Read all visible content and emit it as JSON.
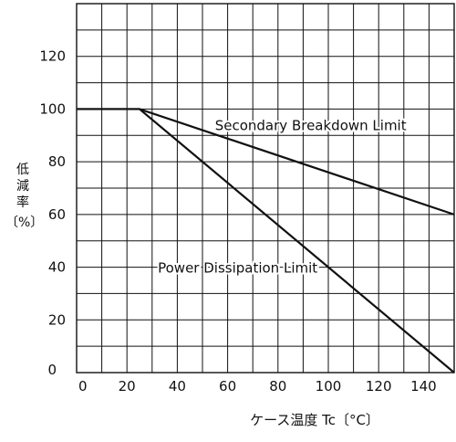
{
  "chart_data": {
    "type": "line",
    "xlabel": "ケース温度 Tc〔°C〕",
    "ylabel_chars": [
      "低",
      "減",
      "率"
    ],
    "ylabel_unit": "〔%〕",
    "xlim": [
      0,
      150
    ],
    "ylim": [
      0,
      140
    ],
    "x_ticks": [
      0,
      20,
      40,
      60,
      80,
      100,
      120,
      140
    ],
    "y_ticks": [
      0,
      20,
      40,
      60,
      80,
      100,
      120
    ],
    "x_minor_step": 10,
    "y_minor_step": 10,
    "grid": true,
    "series": [
      {
        "name": "Secondary Breakdown Limit",
        "x": [
          0,
          25,
          150
        ],
        "y": [
          100,
          100,
          60
        ]
      },
      {
        "name": "Power Dissipation Limit",
        "x": [
          0,
          25,
          150
        ],
        "y": [
          100,
          100,
          0
        ]
      }
    ],
    "annotations": [
      {
        "text": "Secondary Breakdown Limit",
        "x": 93,
        "y": 92
      },
      {
        "text": "Power Dissipation Limit",
        "x": 64,
        "y": 38
      }
    ],
    "colors": {
      "line": "#111111",
      "grid": "#111111",
      "background": "#ffffff"
    }
  }
}
